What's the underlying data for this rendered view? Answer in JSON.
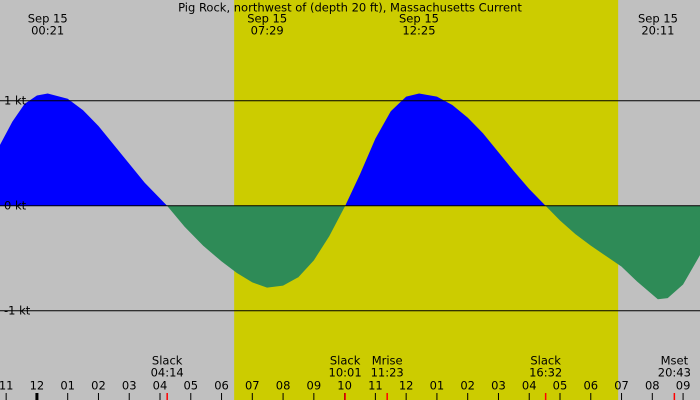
{
  "chart_data": {
    "type": "area",
    "title": "Pig Rock, northwest of (depth 20 ft), Massachusetts Current",
    "x": [
      -1.2,
      -0.8,
      -0.4,
      0,
      0.35,
      1.0,
      1.5,
      2.0,
      2.5,
      3.0,
      3.5,
      4.23,
      4.8,
      5.4,
      6.0,
      6.5,
      7.0,
      7.48,
      8.0,
      8.5,
      9.0,
      9.5,
      10.02,
      10.5,
      11.0,
      11.5,
      12.0,
      12.42,
      13.0,
      13.5,
      14.0,
      14.5,
      15.0,
      15.5,
      16.0,
      16.53,
      17.0,
      17.5,
      18.0,
      18.5,
      19.0,
      19.5,
      20.18,
      20.5,
      21.0,
      21.55
    ],
    "values": [
      0.58,
      0.8,
      0.97,
      1.05,
      1.07,
      1.02,
      0.91,
      0.76,
      0.58,
      0.4,
      0.22,
      0,
      -0.2,
      -0.38,
      -0.53,
      -0.64,
      -0.73,
      -0.78,
      -0.76,
      -0.68,
      -0.52,
      -0.29,
      0,
      0.3,
      0.64,
      0.9,
      1.04,
      1.07,
      1.04,
      0.96,
      0.84,
      0.69,
      0.51,
      0.33,
      0.16,
      0,
      -0.14,
      -0.27,
      -0.38,
      -0.48,
      -0.58,
      -0.72,
      -0.89,
      -0.88,
      -0.75,
      -0.47
    ],
    "flood_color": "#0000ff",
    "ebb_color": "#2e8b57",
    "background_color": "#c0c0c0",
    "daylight_color": "#cccc00",
    "daylight": [
      6.41,
      18.89
    ],
    "xlim": [
      -1.2,
      21.55
    ],
    "ylim": [
      -1.85,
      1.96
    ],
    "yticks": [
      {
        "value": 1,
        "label": "1 kt"
      },
      {
        "value": 0,
        "label": "0 kt"
      },
      {
        "value": -1,
        "label": "-1 kt"
      }
    ],
    "xticks": [
      {
        "value": -1,
        "label": "11"
      },
      {
        "value": 0,
        "label": "12"
      },
      {
        "value": 1,
        "label": "01"
      },
      {
        "value": 2,
        "label": "02"
      },
      {
        "value": 3,
        "label": "03"
      },
      {
        "value": 4,
        "label": "04"
      },
      {
        "value": 5,
        "label": "05"
      },
      {
        "value": 6,
        "label": "06"
      },
      {
        "value": 7,
        "label": "07"
      },
      {
        "value": 8,
        "label": "08"
      },
      {
        "value": 9,
        "label": "09"
      },
      {
        "value": 10,
        "label": "10"
      },
      {
        "value": 11,
        "label": "11"
      },
      {
        "value": 12,
        "label": "12"
      },
      {
        "value": 13,
        "label": "01"
      },
      {
        "value": 14,
        "label": "02"
      },
      {
        "value": 15,
        "label": "03"
      },
      {
        "value": 16,
        "label": "04"
      },
      {
        "value": 17,
        "label": "05"
      },
      {
        "value": 18,
        "label": "06"
      },
      {
        "value": 19,
        "label": "07"
      },
      {
        "value": 20,
        "label": "08"
      },
      {
        "value": 21,
        "label": "09"
      }
    ],
    "top_annotations": [
      {
        "date": "Sep 15",
        "time": "00:21"
      },
      {
        "date": "Sep 15",
        "time": "07:29"
      },
      {
        "date": "Sep 15",
        "time": "12:25"
      },
      {
        "date": "Sep 15",
        "time": "20:11"
      }
    ],
    "bottom_annotations": [
      {
        "label": "Slack",
        "time": "04:14"
      },
      {
        "label": "Slack",
        "time": "10:01"
      },
      {
        "label": "Mrise",
        "time": "11:23"
      },
      {
        "label": "Slack",
        "time": "16:32"
      },
      {
        "label": "Mset",
        "time": "20:43"
      }
    ]
  }
}
